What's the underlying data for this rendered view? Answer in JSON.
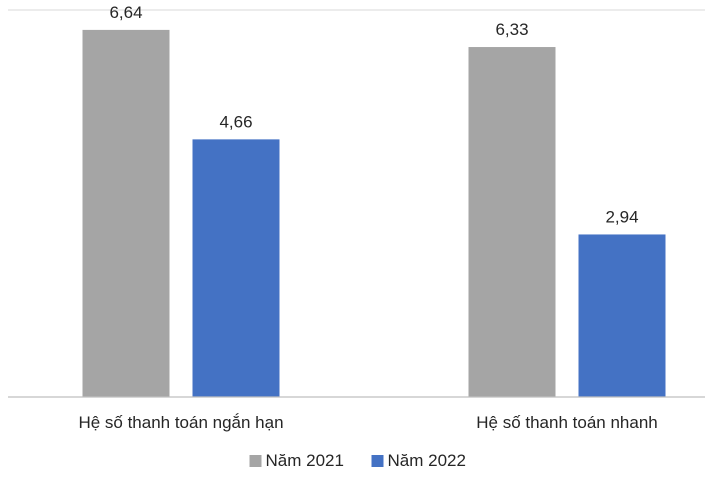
{
  "chart_data": {
    "type": "bar",
    "categories": [
      "Hệ số thanh toán ngắn hạn",
      "Hệ số thanh toán nhanh"
    ],
    "series": [
      {
        "name": "Năm 2021",
        "values": [
          6.64,
          6.33
        ],
        "color": "#A5A5A5"
      },
      {
        "name": "Năm 2022",
        "values": [
          4.66,
          2.94
        ],
        "color": "#4472C4"
      }
    ],
    "data_labels": [
      [
        "6,64",
        "6,33"
      ],
      [
        "4,66",
        "2,94"
      ]
    ],
    "ylim": [
      0,
      7
    ],
    "grid": true,
    "legend_position": "bottom",
    "title": "",
    "xlabel": "",
    "ylabel": ""
  }
}
